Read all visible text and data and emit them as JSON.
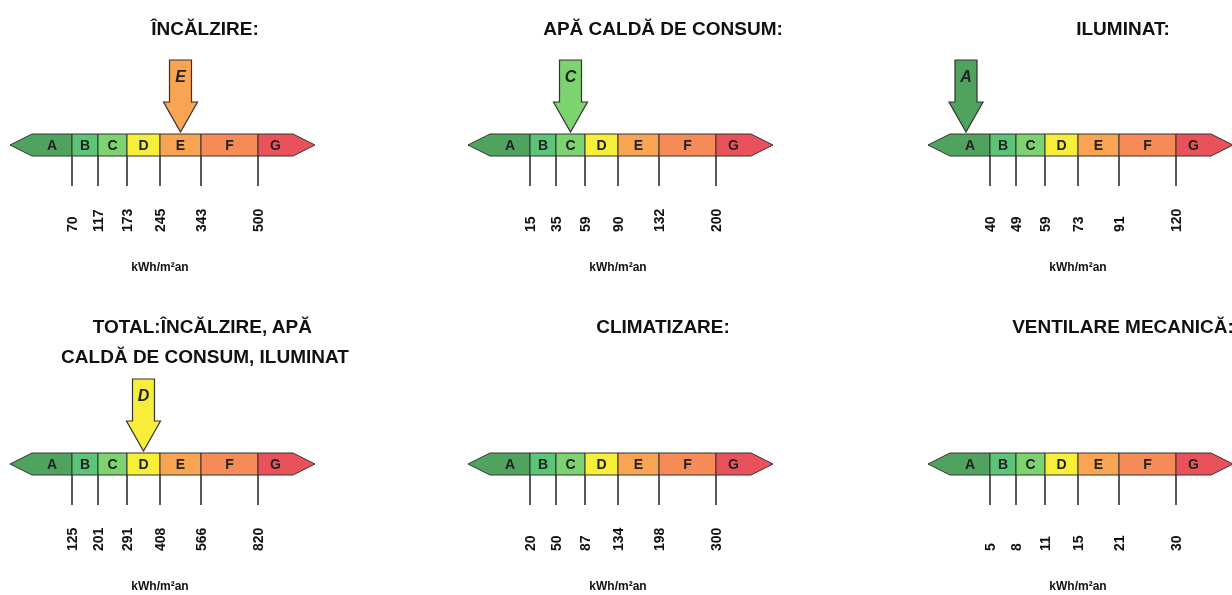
{
  "chart_data": [
    {
      "type": "other",
      "title": "ÎNCĂLZIRE:",
      "categories": [
        "A",
        "B",
        "C",
        "D",
        "E",
        "F",
        "G"
      ],
      "values": [
        70,
        117,
        173,
        245,
        343,
        500,
        null
      ],
      "data_labels": true,
      "needle": "E",
      "xlabel": "kWh/m²an",
      "colors": [
        "#4fa35f",
        "#5cc477",
        "#7dd36f",
        "#f7ee3a",
        "#f8a453",
        "#f68b57",
        "#e9525a"
      ]
    },
    {
      "type": "other",
      "title": "APĂ CALDĂ DE CONSUM:",
      "categories": [
        "A",
        "B",
        "C",
        "D",
        "E",
        "F",
        "G"
      ],
      "values": [
        15,
        35,
        59,
        90,
        132,
        200,
        null
      ],
      "data_labels": true,
      "needle": "C",
      "xlabel": "kWh/m²an",
      "colors": [
        "#4fa35f",
        "#5cc477",
        "#7dd36f",
        "#f7ee3a",
        "#f8a453",
        "#f68b57",
        "#e9525a"
      ]
    },
    {
      "type": "other",
      "title": "ILUMINAT:",
      "categories": [
        "A",
        "B",
        "C",
        "D",
        "E",
        "F",
        "G"
      ],
      "values": [
        40,
        49,
        59,
        73,
        91,
        120,
        null
      ],
      "data_labels": true,
      "needle": "A",
      "xlabel": "kWh/m²an",
      "colors": [
        "#4fa35f",
        "#5cc477",
        "#7dd36f",
        "#f7ee3a",
        "#f8a453",
        "#f68b57",
        "#e9525a"
      ]
    },
    {
      "type": "other",
      "title": "TOTAL:ÎNCĂLZIRE, APĂ CALDĂ DE CONSUM, ILUMINAT",
      "categories": [
        "A",
        "B",
        "C",
        "D",
        "E",
        "F",
        "G"
      ],
      "values": [
        125,
        201,
        291,
        408,
        566,
        820,
        null
      ],
      "data_labels": true,
      "needle": "D",
      "xlabel": "kWh/m²an",
      "colors": [
        "#4fa35f",
        "#5cc477",
        "#7dd36f",
        "#f7ee3a",
        "#f8a453",
        "#f68b57",
        "#e9525a"
      ]
    },
    {
      "type": "other",
      "title": "CLIMATIZARE:",
      "categories": [
        "A",
        "B",
        "C",
        "D",
        "E",
        "F",
        "G"
      ],
      "values": [
        20,
        50,
        87,
        134,
        198,
        300,
        null
      ],
      "data_labels": true,
      "xlabel": "kWh/m²an",
      "colors": [
        "#4fa35f",
        "#5cc477",
        "#7dd36f",
        "#f7ee3a",
        "#f8a453",
        "#f68b57",
        "#e9525a"
      ]
    },
    {
      "type": "other",
      "title": "VENTILARE MECANICĂ:",
      "categories": [
        "A",
        "B",
        "C",
        "D",
        "E",
        "F",
        "G"
      ],
      "values": [
        5,
        8,
        11,
        15,
        21,
        30,
        null
      ],
      "data_labels": true,
      "xlabel": "kWh/m²an",
      "colors": [
        "#4fa35f",
        "#5cc477",
        "#7dd36f",
        "#f7ee3a",
        "#f8a453",
        "#f68b57",
        "#e9525a"
      ]
    }
  ]
}
